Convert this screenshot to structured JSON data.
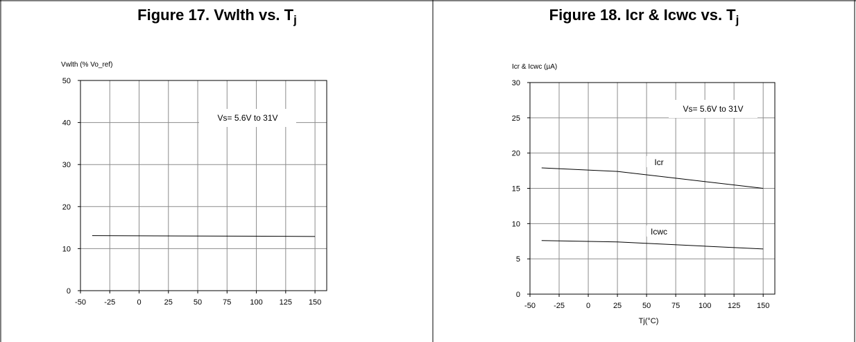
{
  "figures": [
    {
      "title_main": "Figure 17. Vwlth vs. T",
      "title_sub": "j"
    },
    {
      "title_main": "Figure 18. Icr & Icwc vs. T",
      "title_sub": "j"
    }
  ],
  "chart_data": [
    {
      "type": "line",
      "title": "Figure 17. Vwlth vs. Tj",
      "xlabel": "",
      "ylabel": "Vwlth (% Vo_ref)",
      "xlim": [
        -50,
        160
      ],
      "ylim": [
        0,
        50
      ],
      "x_ticks": [
        -50,
        -25,
        0,
        25,
        50,
        75,
        100,
        125,
        150
      ],
      "y_ticks": [
        0,
        10,
        20,
        30,
        40,
        50
      ],
      "grid": true,
      "annotation": "Vs= 5.6V to 31V",
      "series": [
        {
          "label": "",
          "x": [
            -40,
            150
          ],
          "y": [
            13.1,
            12.9
          ]
        }
      ]
    },
    {
      "type": "line",
      "title": "Figure 18. Icr & Icwc vs. Tj",
      "xlabel": "Tj(°C)",
      "ylabel": "Icr & Icwc (µA)",
      "xlim": [
        -50,
        160
      ],
      "ylim": [
        0,
        30
      ],
      "x_ticks": [
        -50,
        -25,
        0,
        25,
        50,
        75,
        100,
        125,
        150
      ],
      "y_ticks": [
        0,
        5,
        10,
        15,
        20,
        25,
        30
      ],
      "grid": true,
      "annotation": "Vs= 5.6V to 31V",
      "series": [
        {
          "label": "Icr",
          "x": [
            -40,
            25,
            150
          ],
          "y": [
            17.9,
            17.4,
            15.0
          ]
        },
        {
          "label": "Icwc",
          "x": [
            -40,
            25,
            150
          ],
          "y": [
            7.6,
            7.4,
            6.4
          ]
        }
      ]
    }
  ]
}
